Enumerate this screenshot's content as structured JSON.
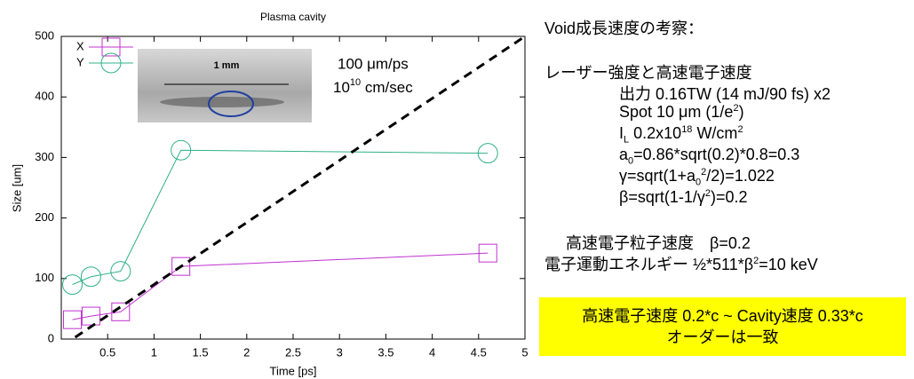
{
  "chart_data": {
    "type": "line",
    "title": "Plasma cavity",
    "x_label": "Time [ps]",
    "y_label": "Size [um]",
    "xlim": [
      0,
      5
    ],
    "ylim": [
      0,
      500
    ],
    "xticks": [
      0.5,
      1,
      1.5,
      2,
      2.5,
      3,
      3.5,
      4,
      4.5,
      5
    ],
    "yticks": [
      0,
      100,
      200,
      300,
      400,
      500
    ],
    "grid": false,
    "legend": "upper-left",
    "series": [
      {
        "name": "X",
        "color": "#c030d0",
        "marker": "square",
        "x": [
          0.12,
          0.32,
          0.64,
          1.29,
          4.6
        ],
        "values": [
          32,
          38,
          45,
          120,
          142
        ]
      },
      {
        "name": "Y",
        "color": "#30b088",
        "marker": "circle",
        "x": [
          0.12,
          0.32,
          0.64,
          1.29,
          4.6
        ],
        "values": [
          90,
          103,
          112,
          312,
          307
        ]
      }
    ],
    "reference_line": {
      "color": "#000000",
      "x": [
        0.15,
        5
      ],
      "values": [
        3,
        500
      ]
    },
    "inset": {
      "scale_label": "1 mm"
    },
    "annotations": {
      "speed": "100 μm/ps",
      "speed_cm": [
        "10",
        "10",
        " cm/sec"
      ]
    }
  },
  "notes": {
    "heading": "Void成長速度の考察：",
    "subheading": "レーザー強度と高速電子速度",
    "output": "出力 0.16TW (14 mJ/90 fs) x2",
    "spot": [
      "Spot 10 μm (1/e",
      "2",
      ")"
    ],
    "intensity": [
      "I",
      "L",
      " 0.2x10",
      "18",
      " W/cm",
      "2"
    ],
    "a0": [
      "a",
      "0",
      "=0.86*sqrt(0.2)*0.8=0.3"
    ],
    "gamma": [
      "γ=sqrt(1+a",
      "0",
      "2",
      "/2)=1.022"
    ],
    "beta": [
      "β=sqrt(1-1/γ",
      "2",
      ")=0.2"
    ],
    "particle_speed": "高速電子粒子速度　β=0.2",
    "energy": [
      "電子運動エネルギー ½*511*β",
      "2",
      "=10 keV"
    ],
    "conclusion": [
      "高速電子速度 0.2*c ~ Cavity速度 0.33*c",
      "オーダーは一致"
    ]
  }
}
